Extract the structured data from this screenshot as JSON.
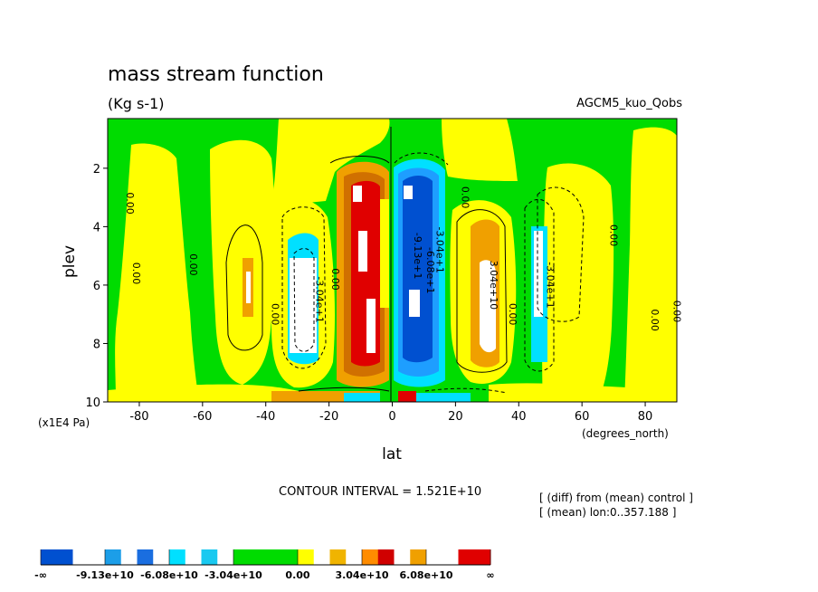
{
  "chart_data": {
    "type": "contour",
    "title": "mass stream function",
    "subtitle": "(Kg s-1)",
    "dataset_label": "AGCM5_kuo_Qobs",
    "xlabel": "lat",
    "xunits": "(degrees_north)",
    "ylabel": "plev",
    "yunits": "(x1E4 Pa)",
    "xlim": [
      -90,
      90
    ],
    "ylim": [
      10,
      0.3
    ],
    "xticks": [
      -80,
      -60,
      -40,
      -20,
      0,
      20,
      40,
      60,
      80
    ],
    "xtick_labels": [
      "-80",
      "-60",
      "-40",
      "-20",
      "0",
      "20",
      "40",
      "60",
      "80"
    ],
    "yticks": [
      2,
      4,
      6,
      8,
      10
    ],
    "ytick_labels": [
      "2",
      "4",
      "6",
      "8",
      "10"
    ],
    "contour_interval_text": "CONTOUR INTERVAL = 1.521E+10",
    "info_lines": [
      "[ (diff) from (mean) control ]",
      "[ (mean) lon:0..357.188 ]"
    ],
    "contour_labels": [
      {
        "text": "0.00",
        "lat": -84,
        "plev": 3.2
      },
      {
        "text": "0.00",
        "lat": -82,
        "plev": 5.6
      },
      {
        "text": "0.00",
        "lat": -64,
        "plev": 5.3
      },
      {
        "text": "0.00",
        "lat": -38,
        "plev": 7.0
      },
      {
        "text": "-3.04e+1",
        "lat": -24,
        "plev": 6.5
      },
      {
        "text": "0.00",
        "lat": -19,
        "plev": 5.8
      },
      {
        "text": "0.00",
        "lat": 22,
        "plev": 3.0
      },
      {
        "text": "-3.04e+1",
        "lat": 14,
        "plev": 4.8
      },
      {
        "text": "-6.08e+1",
        "lat": 11,
        "plev": 5.5
      },
      {
        "text": "-9.13e+1",
        "lat": 7,
        "plev": 5.0
      },
      {
        "text": "3.04e+10",
        "lat": 31,
        "plev": 6.0
      },
      {
        "text": "0.00",
        "lat": 37,
        "plev": 7.0
      },
      {
        "text": "-3.04e+1",
        "lat": 49,
        "plev": 6.0
      },
      {
        "text": "0.00",
        "lat": 69,
        "plev": 4.3
      },
      {
        "text": "0.00",
        "lat": 82,
        "plev": 7.2
      },
      {
        "text": "0.00",
        "lat": 89,
        "plev": 6.9
      }
    ],
    "colorbar": {
      "tick_labels": [
        "-∞",
        "-9.13e+10",
        "-6.08e+10",
        "-3.04e+10",
        "0.00",
        "3.04e+10",
        "6.08e+10",
        "∞"
      ],
      "segments": [
        {
          "from": "-∞",
          "to": "-9.13e+10",
          "colors": [
            "#0050d0",
            "#ffffff"
          ]
        },
        {
          "from": "-9.13e+10",
          "to": "-6.08e+10",
          "colors": [
            "#1c9ee8",
            "#ffffff",
            "#1a6ee0",
            "#ffffff"
          ]
        },
        {
          "from": "-6.08e+10",
          "to": "-3.04e+10",
          "colors": [
            "#00e0ff",
            "#ffffff",
            "#19c9f0",
            "#ffffff"
          ]
        },
        {
          "from": "-3.04e+10",
          "to": "0.00",
          "colors": [
            "#00dc00"
          ]
        },
        {
          "from": "0.00",
          "to": "3.04e+10",
          "colors": [
            "#ffff00",
            "#ffffff",
            "#f0b400",
            "#ffffff"
          ]
        },
        {
          "from": "3.04e+10",
          "to": "6.08e+10",
          "colors": [
            "#ff8c00",
            "#d00000",
            "#ffffff",
            "#f0a000"
          ]
        },
        {
          "from": "6.08e+10",
          "to": "∞",
          "colors": [
            "#ffffff",
            "#e00000"
          ]
        }
      ]
    },
    "colors": {
      "green": "#00dc00",
      "yellow": "#ffff00",
      "orange": "#f0a000",
      "dark_orange": "#d07000",
      "red": "#e00000",
      "cyan": "#00e0ff",
      "light_blue": "#1e9eff",
      "blue": "#0050d0"
    }
  }
}
